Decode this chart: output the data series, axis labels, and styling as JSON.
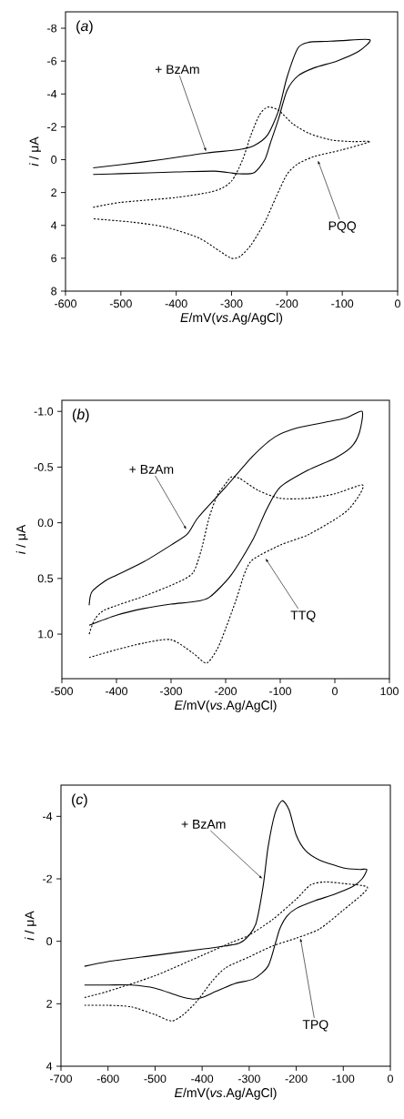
{
  "chart_data": [
    {
      "type": "line",
      "title": "(*a*)",
      "xlabel": "*E*/mV(*vs*.Ag/AgCl)",
      "ylabel": "*i* / μA",
      "xlim": [
        -600,
        0
      ],
      "ylim": [
        8,
        -9
      ],
      "xticks": [
        -600,
        -500,
        -400,
        -300,
        -200,
        -100,
        0
      ],
      "yticks": [
        -8,
        -6,
        -4,
        -2,
        0,
        2,
        4,
        6,
        8
      ],
      "series": [
        {
          "name": "+ BzAm",
          "color": "#000000",
          "line_style": "solid",
          "x": [
            -550,
            -500,
            -428,
            -346,
            -290,
            -260,
            -235,
            -215,
            -200,
            -180,
            -160,
            -130,
            -100,
            -50,
            -70,
            -110,
            -150,
            -180,
            -200,
            -215,
            -230,
            -240,
            -260,
            -290,
            -330,
            -400,
            -500,
            -550
          ],
          "values": [
            0.5,
            0.3,
            0,
            -0.4,
            -0.6,
            -0.85,
            -1.5,
            -3,
            -5,
            -6.8,
            -7.15,
            -7.2,
            -7.25,
            -7.3,
            -6.6,
            -6.0,
            -5.6,
            -5.1,
            -4.2,
            -2.5,
            -1.0,
            0,
            0.8,
            0.85,
            0.7,
            0.75,
            0.85,
            0.9
          ]
        },
        {
          "name": "PQQ",
          "color": "#000000",
          "line_style": "dotted",
          "x": [
            -550,
            -500,
            -400,
            -330,
            -300,
            -280,
            -265,
            -250,
            -235,
            -215,
            -190,
            -160,
            -120,
            -80,
            -50,
            -100,
            -150,
            -180,
            -200,
            -220,
            -240,
            -265,
            -285,
            -300,
            -320,
            -360,
            -420,
            -480,
            -550
          ],
          "values": [
            2.9,
            2.6,
            2.3,
            1.9,
            1.3,
            0,
            -1.5,
            -2.7,
            -3.2,
            -3.0,
            -2.2,
            -1.6,
            -1.2,
            -1.1,
            -1.1,
            -0.6,
            -0.2,
            0.25,
            0.9,
            2.3,
            3.8,
            5.2,
            5.9,
            6.0,
            5.6,
            4.75,
            4.1,
            3.8,
            3.6
          ]
        }
      ]
    },
    {
      "type": "line",
      "title": "(*b*)",
      "xlabel": "*E*/mV(*vs*.Ag/AgCl)",
      "ylabel": "*i* / μA",
      "xlim": [
        -500,
        100
      ],
      "ylim": [
        1.4,
        -1.1
      ],
      "xticks": [
        -500,
        -400,
        -300,
        -200,
        -100,
        0,
        100
      ],
      "yticks": [
        {
          "value": -1.0,
          "label": "-1.0"
        },
        {
          "value": -0.5,
          "label": "-0.5"
        },
        {
          "value": 0,
          "label": "0.0"
        },
        {
          "value": 0.5,
          "label": "0.5"
        },
        {
          "value": 1.0,
          "label": "1.0"
        }
      ],
      "series": [
        {
          "name": "+ BzAm",
          "color": "#000000",
          "line_style": "solid",
          "x": [
            -450,
            -445,
            -420,
            -400,
            -350,
            -300,
            -270,
            -250,
            -200,
            -150,
            -110,
            -70,
            -20,
            20,
            50,
            45,
            30,
            0,
            -50,
            -100,
            -125,
            -150,
            -190,
            -230,
            -260,
            -300,
            -350,
            -400,
            -450
          ],
          "values": [
            0.74,
            0.62,
            0.52,
            0.47,
            0.35,
            0.2,
            0.1,
            -0.05,
            -0.32,
            -0.6,
            -0.77,
            -0.85,
            -0.9,
            -0.94,
            -1.0,
            -0.81,
            -0.68,
            -0.58,
            -0.47,
            -0.32,
            -0.12,
            0.15,
            0.47,
            0.67,
            0.71,
            0.73,
            0.77,
            0.83,
            0.92
          ]
        },
        {
          "name": "TTQ",
          "color": "#000000",
          "line_style": "dotted",
          "x": [
            -450,
            -440,
            -420,
            -350,
            -290,
            -260,
            -245,
            -230,
            -215,
            -200,
            -190,
            -175,
            -140,
            -100,
            -50,
            0,
            50,
            45,
            25,
            0,
            -50,
            -100,
            -150,
            -165,
            -180,
            -200,
            -215,
            -235,
            -260,
            -300,
            -350,
            -400,
            -450
          ],
          "values": [
            1.0,
            0.87,
            0.78,
            0.66,
            0.54,
            0.45,
            0.25,
            -0.05,
            -0.25,
            -0.35,
            -0.41,
            -0.4,
            -0.29,
            -0.22,
            -0.22,
            -0.26,
            -0.34,
            -0.25,
            -0.12,
            -0.03,
            0.11,
            0.2,
            0.33,
            0.45,
            0.68,
            0.95,
            1.13,
            1.26,
            1.17,
            1.05,
            1.08,
            1.14,
            1.21
          ]
        }
      ]
    },
    {
      "type": "line",
      "title": "(*c*)",
      "xlabel": "*E*/mV(*vs*.Ag/AgCl)",
      "ylabel": "*i* / μA",
      "xlim": [
        -700,
        0
      ],
      "ylim": [
        4,
        -5
      ],
      "xticks": [
        -700,
        -600,
        -500,
        -400,
        -300,
        -200,
        -100,
        0
      ],
      "yticks": [
        -4,
        -2,
        0,
        2,
        4
      ],
      "series": [
        {
          "name": "+ BzAm",
          "color": "#000000",
          "line_style": "solid",
          "x": [
            -650,
            -600,
            -500,
            -400,
            -350,
            -320,
            -300,
            -285,
            -270,
            -260,
            -245,
            -230,
            -215,
            -200,
            -180,
            -150,
            -100,
            -65,
            -50,
            -60,
            -80,
            -120,
            -160,
            -200,
            -220,
            -235,
            -245,
            -260,
            -290,
            -330,
            -370,
            -400,
            -420,
            -450,
            -500,
            -550,
            -600,
            -650
          ],
          "values": [
            0.8,
            0.65,
            0.45,
            0.25,
            0.15,
            0.05,
            -0.2,
            -0.6,
            -1.8,
            -3.0,
            -4.1,
            -4.5,
            -4.2,
            -3.4,
            -2.9,
            -2.6,
            -2.35,
            -2.3,
            -2.3,
            -2.0,
            -1.75,
            -1.5,
            -1.3,
            -1.05,
            -0.8,
            -0.4,
            0.1,
            0.8,
            1.2,
            1.35,
            1.6,
            1.8,
            1.85,
            1.75,
            1.5,
            1.4,
            1.4,
            1.4
          ]
        },
        {
          "name": "TPQ",
          "color": "#000000",
          "line_style": "dotted",
          "x": [
            -650,
            -600,
            -500,
            -400,
            -340,
            -300,
            -250,
            -200,
            -170,
            -140,
            -100,
            -50,
            -60,
            -100,
            -150,
            -200,
            -250,
            -300,
            -350,
            -380,
            -410,
            -440,
            -465,
            -500,
            -550,
            -600,
            -650
          ],
          "values": [
            1.8,
            1.6,
            1.1,
            0.45,
            0.05,
            -0.2,
            -0.7,
            -1.35,
            -1.8,
            -1.9,
            -1.85,
            -1.75,
            -1.5,
            -1.0,
            -0.4,
            -0.1,
            0.15,
            0.5,
            0.85,
            1.3,
            1.9,
            2.35,
            2.55,
            2.35,
            2.1,
            2.05,
            2.05
          ]
        }
      ]
    }
  ]
}
